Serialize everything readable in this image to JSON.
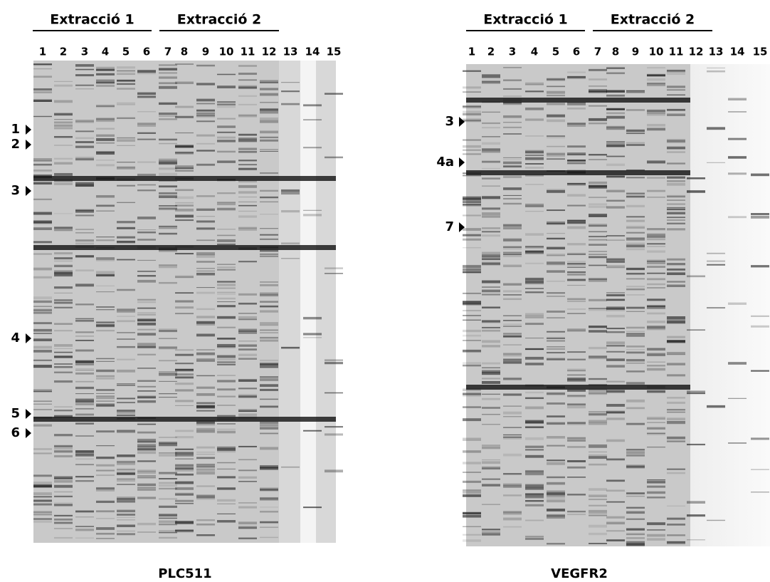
{
  "panels": [
    {
      "groups": [
        "Extracció 1",
        "Extracció 2"
      ],
      "lanes": [
        "1",
        "2",
        "3",
        "4",
        "5",
        "6",
        "7",
        "8",
        "9",
        "10",
        "11",
        "12",
        "13",
        "14",
        "15"
      ],
      "markers": [
        "1",
        "2",
        "3",
        "4",
        "5",
        "6"
      ],
      "caption": "PLC511"
    },
    {
      "groups": [
        "Extracció 1",
        "Extracció 2"
      ],
      "lanes": [
        "1",
        "2",
        "3",
        "4",
        "5",
        "6",
        "7",
        "8",
        "9",
        "10",
        "11",
        "12",
        "13",
        "14",
        "15"
      ],
      "markers": [
        "3",
        "4a",
        "7"
      ],
      "caption": "VEGFR2"
    }
  ]
}
